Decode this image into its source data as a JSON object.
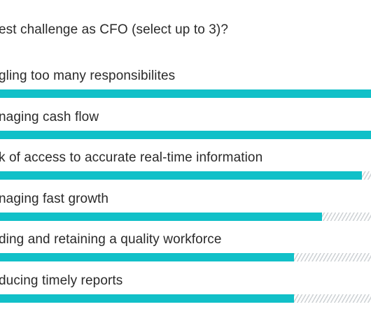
{
  "question": "est challenge as CFO (select up to 3)?",
  "theme": {
    "bar_color": "#11c0c8",
    "hatch_color": "#cfd3d6"
  },
  "chart_data": {
    "type": "bar",
    "orientation": "horizontal",
    "title": "est challenge as CFO (select up to 3)?",
    "categories": [
      "gling too many responsibilites",
      "naging cash flow",
      "k of access to accurate real-time information",
      "naging fast growth",
      "ding and retaining a quality workforce",
      "ducing timely reports"
    ],
    "values": [
      1.0,
      1.0,
      0.975,
      0.867,
      0.792,
      0.792
    ],
    "value_unit": "fraction of visible bar track",
    "track_style": "hatched remainder"
  }
}
